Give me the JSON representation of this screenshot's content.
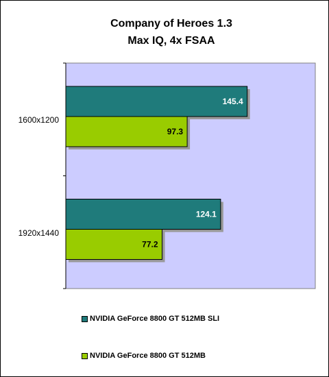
{
  "chart_data": {
    "type": "bar",
    "orientation": "horizontal",
    "title": [
      "Company of Heroes 1.3",
      "Max IQ, 4x FSAA"
    ],
    "categories": [
      "1600x1200",
      "1920x1440"
    ],
    "series": [
      {
        "name": "NVIDIA GeForce 8800 GT 512MB SLI",
        "values": [
          145.4,
          124.1
        ],
        "color": "#1f7b7b",
        "label_color": "#ffffff"
      },
      {
        "name": "NVIDIA GeForce 8800 GT 512MB",
        "values": [
          97.3,
          77.2
        ],
        "color": "#99cc00",
        "label_color": "#000000"
      }
    ],
    "xlim": [
      0,
      200
    ],
    "grid": false,
    "plot_background": "#ccccff",
    "legend_position": "bottom"
  }
}
